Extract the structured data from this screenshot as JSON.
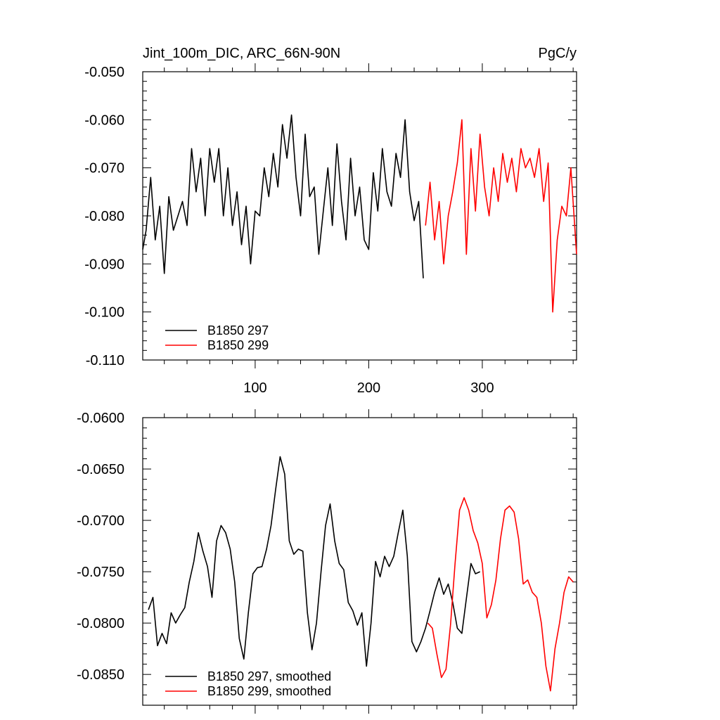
{
  "figure": {
    "title_left": "Jint_100m_DIC, ARC_66N-90N",
    "title_right": "PgC/y"
  },
  "chart_data": [
    {
      "type": "line",
      "title": "Jint_100m_DIC, ARC_66N-90N",
      "units": "PgC/y",
      "xlim": [
        1,
        383
      ],
      "ylim": [
        -0.11,
        -0.05
      ],
      "xticks": [
        100,
        200,
        300
      ],
      "xtick_labels": [
        "100",
        "200",
        "300"
      ],
      "yticks": [
        -0.11,
        -0.1,
        -0.09,
        -0.08,
        -0.07,
        -0.06,
        -0.05
      ],
      "ytick_labels": [
        "-0.110",
        "-0.100",
        "-0.090",
        "-0.080",
        "-0.070",
        "-0.060",
        "-0.050"
      ],
      "grid": false,
      "legend_position": "bottom-left",
      "series": [
        {
          "name": "B1850 297",
          "color": "#000000",
          "x": [
            1,
            4,
            8,
            12,
            16,
            20,
            24,
            28,
            32,
            36,
            40,
            44,
            48,
            52,
            56,
            60,
            64,
            68,
            72,
            76,
            80,
            84,
            88,
            92,
            96,
            100,
            104,
            108,
            112,
            116,
            120,
            124,
            128,
            132,
            136,
            140,
            144,
            148,
            152,
            156,
            160,
            164,
            168,
            172,
            176,
            180,
            184,
            188,
            192,
            196,
            200,
            204,
            208,
            212,
            216,
            220,
            224,
            228,
            232,
            236,
            240,
            244,
            248
          ],
          "y": [
            -0.087,
            -0.083,
            -0.072,
            -0.085,
            -0.078,
            -0.092,
            -0.076,
            -0.083,
            -0.08,
            -0.077,
            -0.082,
            -0.066,
            -0.075,
            -0.068,
            -0.08,
            -0.066,
            -0.073,
            -0.066,
            -0.08,
            -0.07,
            -0.082,
            -0.075,
            -0.086,
            -0.078,
            -0.09,
            -0.079,
            -0.08,
            -0.07,
            -0.076,
            -0.067,
            -0.074,
            -0.061,
            -0.068,
            -0.059,
            -0.072,
            -0.08,
            -0.063,
            -0.076,
            -0.074,
            -0.088,
            -0.079,
            -0.07,
            -0.082,
            -0.065,
            -0.077,
            -0.085,
            -0.068,
            -0.08,
            -0.074,
            -0.085,
            -0.087,
            -0.071,
            -0.079,
            -0.066,
            -0.075,
            -0.078,
            -0.067,
            -0.072,
            -0.06,
            -0.075,
            -0.081,
            -0.077,
            -0.093
          ]
        },
        {
          "name": "B1850 299",
          "color": "#ff0000",
          "x": [
            250,
            254,
            258,
            262,
            266,
            270,
            274,
            278,
            282,
            286,
            290,
            294,
            298,
            302,
            306,
            310,
            314,
            318,
            322,
            326,
            330,
            334,
            338,
            342,
            346,
            350,
            354,
            358,
            362,
            366,
            370,
            374,
            378,
            383
          ],
          "y": [
            -0.082,
            -0.073,
            -0.085,
            -0.077,
            -0.09,
            -0.08,
            -0.075,
            -0.069,
            -0.06,
            -0.088,
            -0.066,
            -0.079,
            -0.063,
            -0.074,
            -0.08,
            -0.07,
            -0.077,
            -0.067,
            -0.073,
            -0.068,
            -0.075,
            -0.066,
            -0.07,
            -0.068,
            -0.072,
            -0.066,
            -0.077,
            -0.069,
            -0.1,
            -0.085,
            -0.078,
            -0.08,
            -0.07,
            -0.088
          ]
        }
      ]
    },
    {
      "type": "line",
      "xlim": [
        1,
        383
      ],
      "ylim": [
        -0.088,
        -0.06
      ],
      "xticks": [
        100,
        200,
        300
      ],
      "yticks": [
        -0.085,
        -0.08,
        -0.075,
        -0.07,
        -0.065,
        -0.06
      ],
      "ytick_labels": [
        "-0.0850",
        "-0.0800",
        "-0.0750",
        "-0.0700",
        "-0.0650",
        "-0.0600"
      ],
      "grid": false,
      "legend_position": "bottom-left",
      "series": [
        {
          "name": "B1850 297, smoothed",
          "color": "#000000",
          "x": [
            6,
            10,
            14,
            18,
            22,
            26,
            30,
            34,
            38,
            42,
            46,
            50,
            54,
            58,
            62,
            66,
            70,
            74,
            78,
            82,
            86,
            90,
            94,
            98,
            102,
            106,
            110,
            114,
            118,
            122,
            126,
            130,
            134,
            138,
            142,
            146,
            150,
            154,
            158,
            162,
            166,
            170,
            174,
            178,
            182,
            186,
            190,
            194,
            198,
            202,
            206,
            210,
            214,
            218,
            222,
            226,
            230,
            234,
            238,
            242,
            246,
            250,
            254,
            258,
            262,
            266,
            270,
            274,
            278,
            282,
            286,
            290,
            294,
            298
          ],
          "y": [
            -0.0787,
            -0.0775,
            -0.0822,
            -0.081,
            -0.082,
            -0.079,
            -0.08,
            -0.0792,
            -0.0785,
            -0.076,
            -0.074,
            -0.0712,
            -0.073,
            -0.0745,
            -0.0775,
            -0.072,
            -0.0705,
            -0.0712,
            -0.0728,
            -0.076,
            -0.0815,
            -0.0835,
            -0.079,
            -0.0752,
            -0.0746,
            -0.0745,
            -0.0728,
            -0.0705,
            -0.067,
            -0.0638,
            -0.0655,
            -0.072,
            -0.0733,
            -0.0728,
            -0.073,
            -0.079,
            -0.0826,
            -0.08,
            -0.075,
            -0.0705,
            -0.0684,
            -0.072,
            -0.0742,
            -0.0748,
            -0.078,
            -0.0788,
            -0.0802,
            -0.079,
            -0.0842,
            -0.08,
            -0.074,
            -0.0755,
            -0.0735,
            -0.0745,
            -0.0735,
            -0.0712,
            -0.069,
            -0.0735,
            -0.0818,
            -0.0828,
            -0.0818,
            -0.0805,
            -0.0788,
            -0.077,
            -0.0756,
            -0.0772,
            -0.0762,
            -0.078,
            -0.0805,
            -0.081,
            -0.0776,
            -0.0742,
            -0.0752,
            -0.075
          ]
        },
        {
          "name": "B1850 299, smoothed",
          "color": "#ff0000",
          "x": [
            252,
            256,
            260,
            264,
            268,
            272,
            276,
            280,
            284,
            288,
            292,
            296,
            300,
            304,
            308,
            312,
            316,
            320,
            324,
            328,
            332,
            336,
            340,
            344,
            348,
            352,
            356,
            360,
            364,
            368,
            372,
            376,
            380
          ],
          "y": [
            -0.08,
            -0.0805,
            -0.083,
            -0.0853,
            -0.0845,
            -0.0802,
            -0.0742,
            -0.069,
            -0.0678,
            -0.069,
            -0.071,
            -0.0722,
            -0.0742,
            -0.0795,
            -0.0782,
            -0.0758,
            -0.0718,
            -0.069,
            -0.0686,
            -0.0692,
            -0.0718,
            -0.0762,
            -0.0758,
            -0.077,
            -0.0775,
            -0.08,
            -0.0842,
            -0.0866,
            -0.0825,
            -0.08,
            -0.077,
            -0.0755,
            -0.076
          ]
        }
      ]
    }
  ]
}
